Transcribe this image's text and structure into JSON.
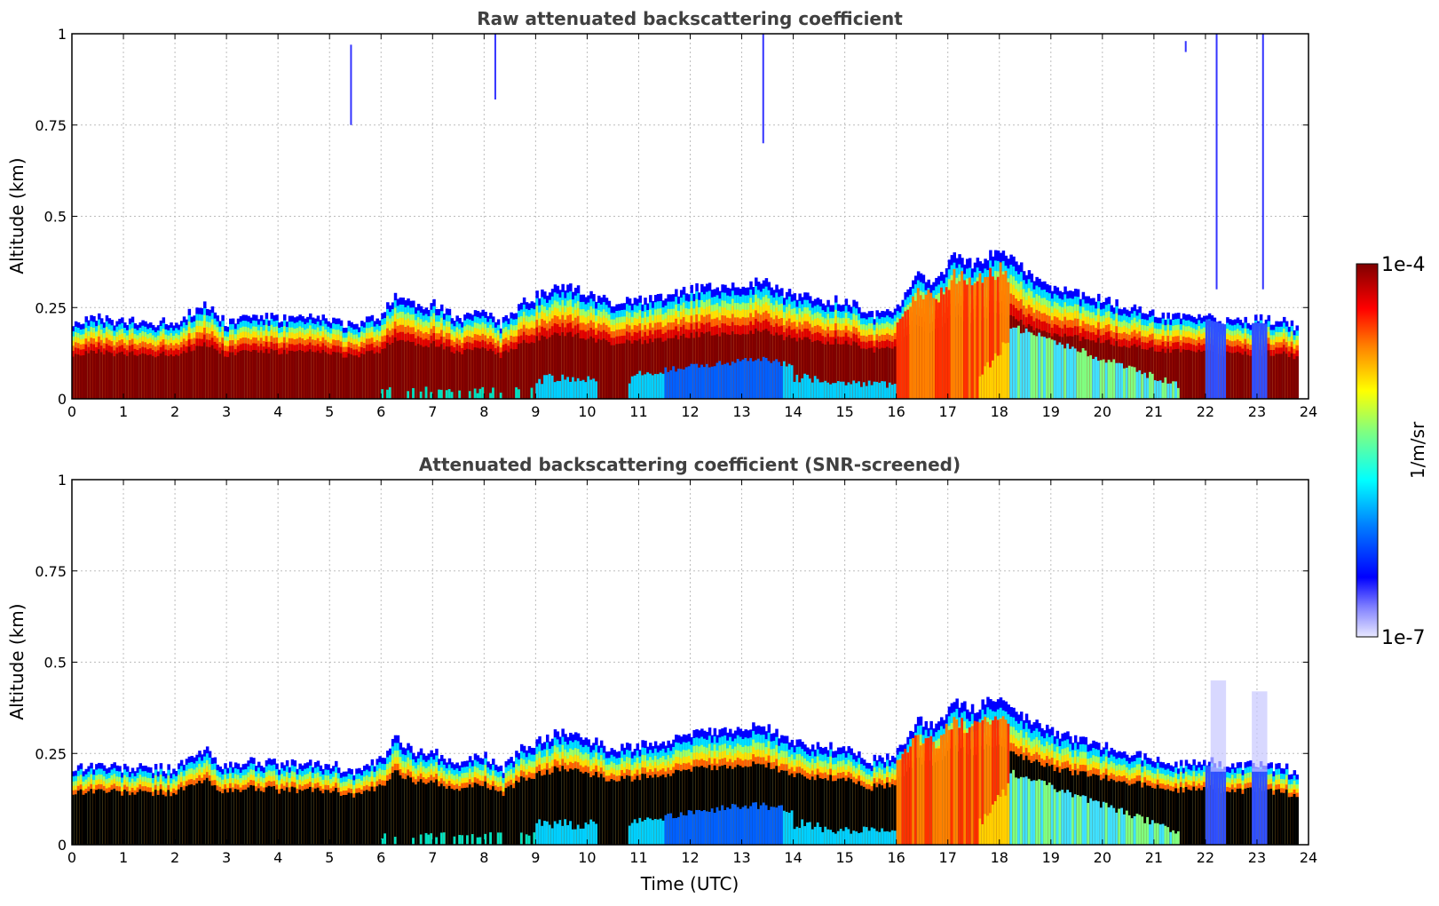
{
  "chart_data": [
    {
      "type": "heatmap",
      "title": "Raw attenuated backscattering coefficient",
      "ylabel": "Altitude (km)",
      "xlabel": "",
      "xlim": [
        0,
        24
      ],
      "ylim": [
        0,
        1
      ],
      "x_ticks": [
        "0",
        "1",
        "2",
        "3",
        "4",
        "5",
        "6",
        "7",
        "8",
        "9",
        "10",
        "11",
        "12",
        "13",
        "14",
        "15",
        "16",
        "17",
        "18",
        "19",
        "20",
        "21",
        "22",
        "23",
        "24"
      ],
      "y_ticks": [
        "0",
        "0.25",
        "0.5",
        "0.75",
        "1"
      ],
      "grid": true,
      "layer_top_km": [
        [
          0,
          0.21
        ],
        [
          0.5,
          0.22
        ],
        [
          1,
          0.21
        ],
        [
          1.5,
          0.21
        ],
        [
          2,
          0.21
        ],
        [
          2.6,
          0.26
        ],
        [
          3,
          0.21
        ],
        [
          3.5,
          0.23
        ],
        [
          4,
          0.22
        ],
        [
          4.5,
          0.22
        ],
        [
          5,
          0.22
        ],
        [
          5.5,
          0.2
        ],
        [
          6,
          0.23
        ],
        [
          6.3,
          0.29
        ],
        [
          6.7,
          0.25
        ],
        [
          7,
          0.26
        ],
        [
          7.5,
          0.22
        ],
        [
          8,
          0.25
        ],
        [
          8.3,
          0.2
        ],
        [
          8.7,
          0.26
        ],
        [
          9,
          0.28
        ],
        [
          9.5,
          0.31
        ],
        [
          10,
          0.29
        ],
        [
          10.5,
          0.26
        ],
        [
          11,
          0.27
        ],
        [
          11.5,
          0.28
        ],
        [
          12,
          0.3
        ],
        [
          12.5,
          0.31
        ],
        [
          13,
          0.31
        ],
        [
          13.4,
          0.33
        ],
        [
          13.8,
          0.29
        ],
        [
          14.5,
          0.27
        ],
        [
          15,
          0.27
        ],
        [
          15.5,
          0.23
        ],
        [
          16,
          0.25
        ],
        [
          16.4,
          0.34
        ],
        [
          16.8,
          0.32
        ],
        [
          17.1,
          0.39
        ],
        [
          17.5,
          0.37
        ],
        [
          18,
          0.41
        ],
        [
          18.5,
          0.35
        ],
        [
          19,
          0.31
        ],
        [
          19.5,
          0.29
        ],
        [
          20,
          0.27
        ],
        [
          20.5,
          0.25
        ],
        [
          21,
          0.24
        ],
        [
          21.5,
          0.22
        ],
        [
          22,
          0.23
        ],
        [
          22.5,
          0.21
        ],
        [
          23,
          0.22
        ],
        [
          23.5,
          0.21
        ],
        [
          23.8,
          0.2
        ]
      ]
    },
    {
      "type": "heatmap",
      "title": "Attenuated backscattering coefficient (SNR-screened)",
      "ylabel": "Altitude (km)",
      "xlabel": "Time (UTC)",
      "xlim": [
        0,
        24
      ],
      "ylim": [
        0,
        1
      ],
      "x_ticks": [
        "0",
        "1",
        "2",
        "3",
        "4",
        "5",
        "6",
        "7",
        "8",
        "9",
        "10",
        "11",
        "12",
        "13",
        "14",
        "15",
        "16",
        "17",
        "18",
        "19",
        "20",
        "21",
        "22",
        "23",
        "24"
      ],
      "y_ticks": [
        "0",
        "0.25",
        "0.5",
        "0.75",
        "1"
      ],
      "grid": true,
      "saturated_color": "#000000"
    }
  ],
  "colorbar": {
    "label": "1/m/sr",
    "max_label": "1e-4",
    "min_label": "1e-7",
    "colormap": "jet",
    "colors": [
      "#e8e8ff",
      "#0000ff",
      "#00ffff",
      "#ffff00",
      "#ff0000",
      "#7f0000"
    ]
  }
}
